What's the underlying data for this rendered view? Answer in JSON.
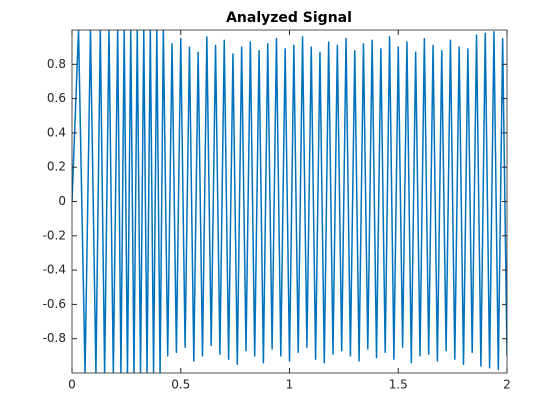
{
  "chart_data": {
    "type": "line",
    "title": "Analyzed Signal",
    "color": "#0072bd",
    "x": [
      0,
      0.03,
      0.06,
      0.085,
      0.11,
      0.13,
      0.15,
      0.17,
      0.19,
      0.21,
      0.225,
      0.24,
      0.255,
      0.27,
      0.285,
      0.3,
      0.315,
      0.33,
      0.345,
      0.36,
      0.375,
      0.39,
      0.405,
      0.42,
      0.44,
      0.46,
      0.48,
      0.5,
      0.52,
      0.54,
      0.56,
      0.58,
      0.6,
      0.62,
      0.64,
      0.66,
      0.68,
      0.7,
      0.72,
      0.74,
      0.76,
      0.78,
      0.8,
      0.82,
      0.84,
      0.86,
      0.88,
      0.9,
      0.92,
      0.94,
      0.96,
      0.98,
      1.0,
      1.02,
      1.04,
      1.06,
      1.08,
      1.1,
      1.12,
      1.14,
      1.16,
      1.18,
      1.2,
      1.22,
      1.24,
      1.26,
      1.28,
      1.3,
      1.32,
      1.34,
      1.36,
      1.38,
      1.4,
      1.42,
      1.44,
      1.46,
      1.48,
      1.5,
      1.52,
      1.54,
      1.56,
      1.58,
      1.6,
      1.62,
      1.64,
      1.66,
      1.68,
      1.7,
      1.72,
      1.74,
      1.76,
      1.78,
      1.8,
      1.82,
      1.84,
      1.86,
      1.88,
      1.9,
      1.92,
      1.94,
      1.96,
      1.98,
      2.0
    ],
    "values": [
      0,
      1,
      -1,
      1,
      -1,
      1,
      -1,
      1,
      -1,
      1,
      -1,
      1,
      -1,
      1,
      -1,
      1,
      -1,
      1,
      -1,
      1,
      -1,
      1,
      -1,
      1,
      -0.9,
      0.92,
      -0.88,
      0.95,
      -0.85,
      0.9,
      -0.93,
      0.87,
      -0.9,
      0.96,
      -0.84,
      0.91,
      -0.89,
      0.94,
      -0.92,
      0.86,
      -0.95,
      0.9,
      -0.87,
      0.93,
      -0.9,
      0.88,
      -0.94,
      0.92,
      -0.86,
      0.95,
      -0.9,
      0.89,
      -0.93,
      0.91,
      -0.88,
      0.96,
      -0.85,
      0.9,
      -0.92,
      0.87,
      -0.94,
      0.93,
      -0.89,
      0.91,
      -0.87,
      0.95,
      -0.9,
      0.88,
      -0.93,
      0.92,
      -0.86,
      0.94,
      -0.91,
      0.89,
      -0.88,
      0.96,
      -0.92,
      0.9,
      -0.85,
      0.93,
      -0.94,
      0.87,
      -0.9,
      0.95,
      -0.89,
      0.91,
      -0.93,
      0.88,
      -0.87,
      0.94,
      -0.92,
      0.9,
      -0.95,
      0.89,
      -0.88,
      0.97,
      -0.96,
      0.98,
      -0.97,
      0.99,
      -0.98,
      0.95,
      -0.9
    ],
    "xlim": [
      0,
      2
    ],
    "ylim": [
      -1,
      1
    ],
    "xticks": [
      0,
      0.5,
      1,
      1.5,
      2
    ],
    "yticks": [
      -0.8,
      -0.6,
      -0.4,
      -0.2,
      0,
      0.2,
      0.4,
      0.6,
      0.8
    ]
  }
}
